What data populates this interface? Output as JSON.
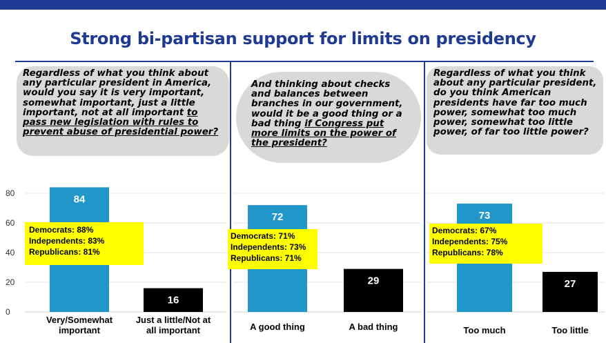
{
  "title": "Strong bi-partisan support for limits on presidency",
  "colors": {
    "band": "#1f3a93",
    "bar_primary": "#2196c9",
    "bar_secondary": "#000000",
    "callout": "#ffff00",
    "question_bg": "#d9d9d9"
  },
  "panels": [
    {
      "question_parts": [
        "Regardless of what you think about any particular president in America, would you say it is very important, somewhat important, just a little important, not at all important ",
        "to pass new legislation with rules to prevent abuse of presidential power?"
      ],
      "party_lines": [
        "Democrats: 88%",
        "Independents: 83%",
        "Republicans: 81%"
      ]
    },
    {
      "question_parts": [
        "And thinking about checks and balances between branches in our government, would it be a good thing or a bad thing ",
        "if Congress put more limits on the power of the president?"
      ],
      "party_lines": [
        "Democrats: 71%",
        "Independents: 73%",
        "Republicans: 71%"
      ]
    },
    {
      "question_parts": [
        "Regardless of what you think about any particular president, do you think American presidents have far too much power, somewhat too much power, somewhat too little power, of far too little power?",
        ""
      ],
      "party_lines": [
        "Democrats: 67%",
        "Independents: 75%",
        "Republicans: 78%"
      ]
    }
  ],
  "chart_data": [
    {
      "type": "bar",
      "categories": [
        "Very/Somewhat important",
        "Just a little/Not at all important"
      ],
      "category_lines": [
        [
          "Very/Somewhat",
          "important"
        ],
        [
          "Just a little/Not at",
          "all important"
        ]
      ],
      "values": [
        84,
        16
      ],
      "yticks": [
        0,
        20,
        40,
        60,
        80
      ],
      "ylim": [
        0,
        90
      ],
      "grid": true
    },
    {
      "type": "bar",
      "categories": [
        "A good thing",
        "A bad thing"
      ],
      "category_lines": [
        [
          "A good thing"
        ],
        [
          "A bad thing"
        ]
      ],
      "values": [
        72,
        29
      ],
      "ylim": [
        0,
        90
      ],
      "grid": true
    },
    {
      "type": "bar",
      "categories": [
        "Too much",
        "Too little"
      ],
      "category_lines": [
        [
          "Too much"
        ],
        [
          "Too little"
        ]
      ],
      "values": [
        73,
        27
      ],
      "ylim": [
        0,
        90
      ],
      "grid": true
    }
  ]
}
